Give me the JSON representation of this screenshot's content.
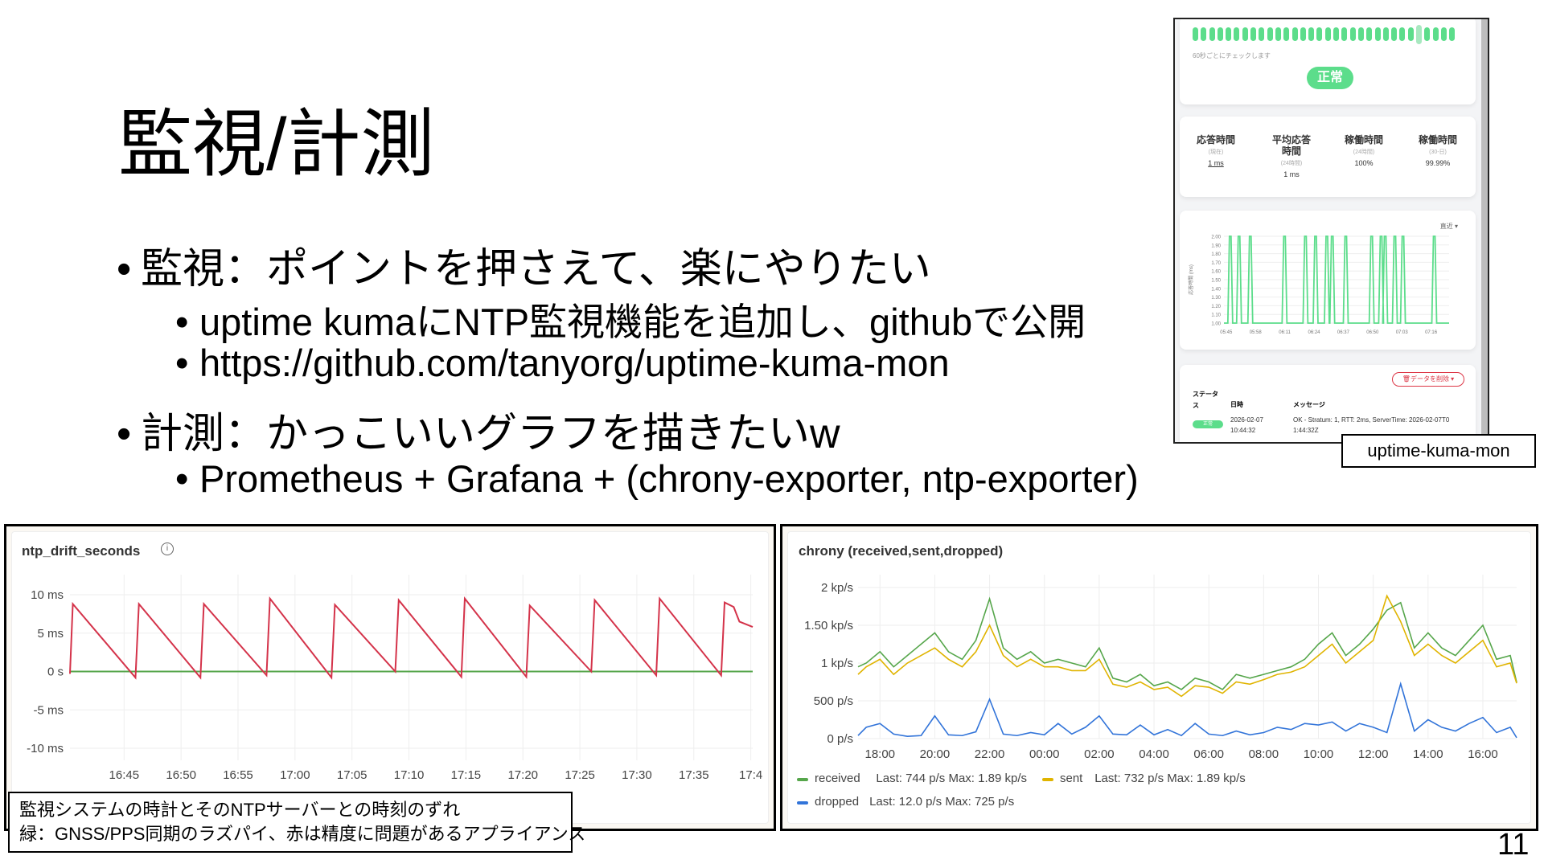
{
  "slide": {
    "title": "監視/計測",
    "page_number": "11",
    "bullets": [
      {
        "text": "監視：ポイントを押さえて、楽にやりたい",
        "sub": [
          "uptime kumaにNTP監視機能を追加し、githubで公開",
          "https://github.com/tanyorg/uptime-kuma-mon"
        ]
      },
      {
        "text": "計測：かっこいいグラフを描きたいw",
        "sub": [
          "Prometheus + Grafana + (chrony-exporter, ntp-exporter)"
        ]
      }
    ],
    "bullet_glyph": "•"
  },
  "kuma": {
    "label": "uptime-kuma-mon",
    "heartbeat": [
      "up",
      "up",
      "up",
      "up",
      "up",
      "up",
      "up",
      "up",
      "up",
      "up",
      "up",
      "up",
      "up",
      "up",
      "up",
      "up",
      "up",
      "up",
      "up",
      "up",
      "up",
      "up",
      "up",
      "up",
      "up",
      "up",
      "up",
      "selected",
      "up",
      "up",
      "up",
      "up"
    ],
    "interval_text": "60秒ごとにチェックします",
    "status_badge": "正常",
    "stats": [
      {
        "h": "応答時間",
        "s": "(現在)",
        "v": "1 ms"
      },
      {
        "h": "平均応答時間",
        "s": "(24時間)",
        "v": "1 ms"
      },
      {
        "h": "稼働時間",
        "s": "(24時間)",
        "v": "100%"
      },
      {
        "h": "稼働時間",
        "s": "(30-日)",
        "v": "99.99%"
      }
    ],
    "range_select": "直近",
    "delete_button": "データを削除",
    "table": {
      "headers": [
        "ステータス",
        "日時",
        "メッセージ"
      ],
      "row": {
        "status": "正常",
        "date": "2026-02-07",
        "time": "10:44:32",
        "message": "OK - Stratum: 1, RTT: 2ms, ServerTime: 2026-02-07T01:44:32Z"
      }
    },
    "colors": {
      "up": "#5cdd8b",
      "delete": "#dc3545"
    }
  },
  "chart_data": [
    {
      "type": "line",
      "title": "応答時間 (ms)",
      "ylabel": "応答時間 (ms)",
      "ylim": [
        1,
        2
      ],
      "yticks": [
        "2.00",
        "1.90",
        "1.80",
        "1.70",
        "1.60",
        "1.50",
        "1.40",
        "1.30",
        "1.20",
        "1.10",
        "1.00"
      ],
      "xticks": [
        "05:45",
        "05:58",
        "06:11",
        "06:24",
        "06:37",
        "06:50",
        "07:03",
        "07:16"
      ],
      "xlim": [
        "05:44",
        "07:24"
      ],
      "baseline_ms": 1,
      "spike_ms": 2,
      "spikes": [
        "05:46:48",
        "05:50:42",
        "05:55:42",
        "06:10:54",
        "06:20:12",
        "06:24:42",
        "06:29:42",
        "06:32:06",
        "06:38:06",
        "06:49:36",
        "06:53:48",
        "06:55:36",
        "06:59:54",
        "07:03:30",
        "07:17:24"
      ],
      "color": "#5cdd8b"
    },
    {
      "type": "line",
      "title": "ntp_drift_seconds",
      "ylim": [
        -10,
        10
      ],
      "yticks": [
        "10 ms",
        "5 ms",
        "0 s",
        "-5 ms",
        "-10 ms"
      ],
      "xticks": [
        "16:45",
        "16:50",
        "16:55",
        "17:00",
        "17:05",
        "17:10",
        "17:15",
        "17:20",
        "17:25",
        "17:30",
        "17:35",
        "17:4"
      ],
      "xlim": [
        "16:40:15",
        "17:40:10"
      ],
      "series": [
        {
          "color": "#d4334a",
          "points": [
            [
              "16:40:15",
              -0.3
            ],
            [
              "16:40:30",
              8.8
            ],
            [
              "16:46:00",
              -0.8
            ],
            [
              "16:46:18",
              8.8
            ],
            [
              "16:51:42",
              -0.8
            ],
            [
              "16:52:00",
              8.8
            ],
            [
              "16:57:30",
              -0.5
            ],
            [
              "16:57:48",
              9.5
            ],
            [
              "17:03:12",
              -0.8
            ],
            [
              "17:03:30",
              8.7
            ],
            [
              "17:08:48",
              0
            ],
            [
              "17:09:06",
              9.3
            ],
            [
              "17:14:36",
              -0.7
            ],
            [
              "17:14:54",
              9.5
            ],
            [
              "17:20:18",
              -0.7
            ],
            [
              "17:20:36",
              8.6
            ],
            [
              "17:26:00",
              0
            ],
            [
              "17:26:18",
              9.3
            ],
            [
              "17:31:42",
              -0.5
            ],
            [
              "17:32:00",
              9.5
            ],
            [
              "17:37:24",
              -0.5
            ],
            [
              "17:37:42",
              9.0
            ],
            [
              "17:38:30",
              8.4
            ],
            [
              "17:39:00",
              6.5
            ],
            [
              "17:40:10",
              5.8
            ]
          ]
        },
        {
          "color": "#56a64b",
          "points": [
            [
              "16:40:15",
              0
            ],
            [
              "17:40:10",
              0
            ]
          ]
        }
      ],
      "caption": [
        "監視システムの時計とそのNTPサーバーとの時刻のずれ",
        "緑：GNSS/PPS同期のラズパイ、赤は精度に問題があるアプライアンス"
      ]
    },
    {
      "type": "line",
      "title": "chrony (received,sent,dropped)",
      "ylim": [
        0,
        2000
      ],
      "yticks": [
        "2 kp/s",
        "1.50 kp/s",
        "1 kp/s",
        "500 p/s",
        "0 p/s"
      ],
      "xticks": [
        "18:00",
        "20:00",
        "22:00",
        "00:00",
        "02:00",
        "04:00",
        "06:00",
        "08:00",
        "10:00",
        "12:00",
        "14:00",
        "16:00"
      ],
      "xlim": [
        "17:12",
        "17:14"
      ],
      "x": [
        "17:12",
        "17:30",
        "18:00",
        "18:30",
        "19:00",
        "19:30",
        "20:00",
        "20:30",
        "21:00",
        "21:30",
        "22:00",
        "22:30",
        "23:00",
        "23:30",
        "00:00",
        "00:30",
        "01:00",
        "01:30",
        "02:00",
        "02:30",
        "03:00",
        "03:30",
        "04:00",
        "04:30",
        "05:00",
        "05:30",
        "06:00",
        "06:30",
        "07:00",
        "07:30",
        "08:00",
        "08:30",
        "09:00",
        "09:30",
        "10:00",
        "10:30",
        "11:00",
        "11:30",
        "12:00",
        "12:30",
        "13:00",
        "13:30",
        "14:00",
        "14:30",
        "15:00",
        "15:30",
        "16:00",
        "16:30",
        "17:00",
        "17:14"
      ],
      "series": [
        {
          "name": "received",
          "color": "#56a64b",
          "legend": "Last: 744 p/s  Max: 1.89 kp/s",
          "values": [
            950,
            1000,
            1150,
            950,
            1100,
            1250,
            1400,
            1150,
            1050,
            1300,
            1850,
            1200,
            1050,
            1150,
            1000,
            1050,
            1000,
            950,
            1200,
            800,
            750,
            850,
            700,
            750,
            650,
            800,
            750,
            650,
            850,
            800,
            850,
            900,
            950,
            1050,
            1250,
            1400,
            1100,
            1250,
            1450,
            1700,
            1800,
            1200,
            1400,
            1200,
            1100,
            1300,
            1500,
            1050,
            1100,
            744
          ]
        },
        {
          "name": "sent",
          "color": "#e0b400",
          "legend": "Last: 732 p/s  Max: 1.89 kp/s",
          "values": [
            850,
            950,
            1050,
            850,
            1000,
            1100,
            1200,
            1050,
            950,
            1150,
            1500,
            1100,
            950,
            1050,
            950,
            950,
            900,
            900,
            1050,
            720,
            680,
            750,
            650,
            680,
            560,
            700,
            680,
            600,
            750,
            720,
            780,
            850,
            880,
            950,
            1100,
            1250,
            1000,
            1150,
            1300,
            1890,
            1550,
            1100,
            1250,
            1100,
            1000,
            1150,
            1300,
            950,
            1000,
            732
          ]
        },
        {
          "name": "dropped",
          "color": "#3274d9",
          "legend": "Last: 12.0 p/s  Max: 725 p/s",
          "values": [
            40,
            150,
            200,
            60,
            30,
            40,
            300,
            50,
            40,
            90,
            520,
            60,
            40,
            80,
            50,
            200,
            60,
            150,
            300,
            60,
            50,
            180,
            50,
            120,
            40,
            200,
            60,
            40,
            100,
            50,
            80,
            150,
            120,
            200,
            180,
            220,
            100,
            200,
            150,
            80,
            725,
            100,
            250,
            150,
            100,
            200,
            280,
            80,
            150,
            12
          ]
        }
      ]
    }
  ]
}
